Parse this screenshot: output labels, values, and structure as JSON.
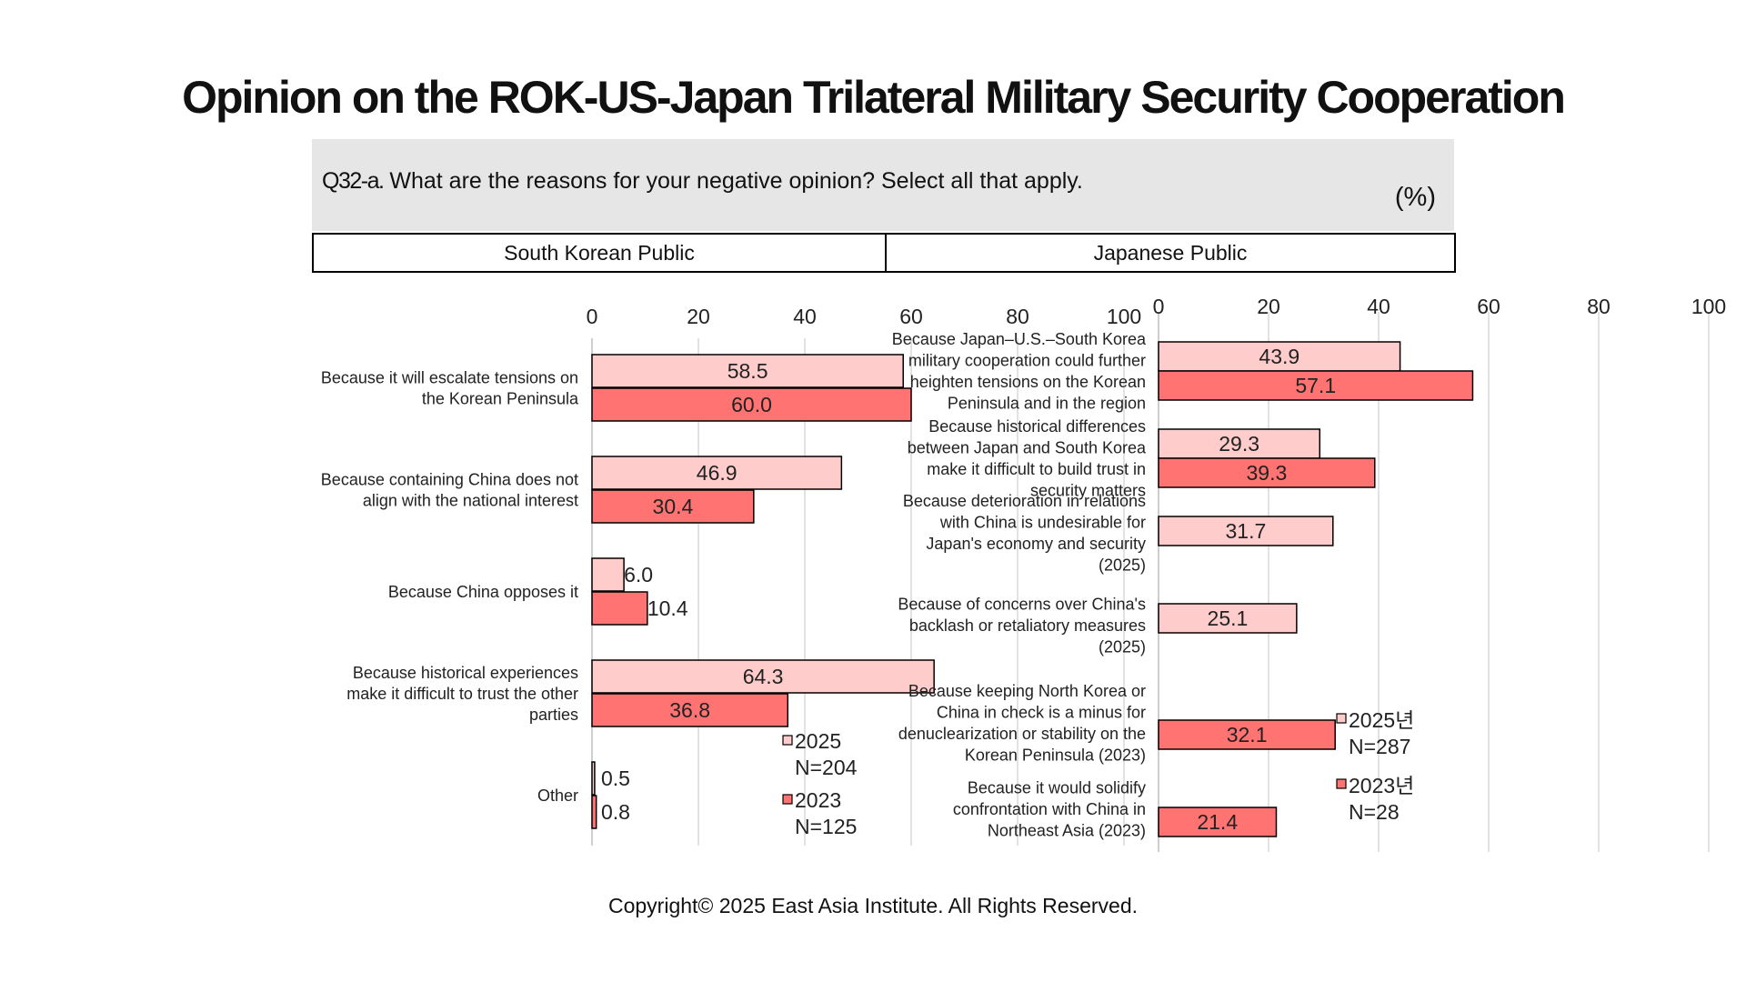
{
  "title": "Opinion on the ROK-US-Japan Trilateral Military Security Cooperation",
  "question": {
    "id": "Q32-a.",
    "text": "What are the reasons for your negative opinion? Select all that apply.",
    "unit": "(%)"
  },
  "headers": {
    "left": "South Korean Public",
    "right": "Japanese Public"
  },
  "copyright": "Copyright© 2025 East Asia Institute. All Rights Reserved.",
  "colors": {
    "series_2025": "#ffcccc",
    "series_2023": "#ff7373",
    "bar_border": "#000000",
    "grid": "#d9d9d9",
    "question_bg": "#e6e6e6"
  },
  "chart_data": [
    {
      "type": "bar",
      "orientation": "horizontal",
      "panel": "South Korean Public",
      "xlim": [
        0,
        100
      ],
      "ticks": [
        0,
        20,
        40,
        60,
        80,
        100
      ],
      "grid": true,
      "legend_position": "bottom-right",
      "categories": [
        [
          "Because it will escalate tensions on",
          "the Korean Peninsula"
        ],
        [
          "Because containing China does not",
          "align with the national interest"
        ],
        [
          "Because China opposes it"
        ],
        [
          "Because historical experiences",
          "make it difficult to trust the other",
          "parties"
        ],
        [
          "Other"
        ]
      ],
      "series": [
        {
          "name": "2025",
          "n_label": "N=204",
          "values": [
            58.5,
            46.9,
            6.0,
            64.3,
            0.5
          ]
        },
        {
          "name": "2023",
          "n_label": "N=125",
          "values": [
            60.0,
            30.4,
            10.4,
            36.8,
            0.8
          ]
        }
      ]
    },
    {
      "type": "bar",
      "orientation": "horizontal",
      "panel": "Japanese Public",
      "xlim": [
        0,
        100
      ],
      "ticks": [
        0,
        20,
        40,
        60,
        80,
        100
      ],
      "grid": true,
      "legend_position": "bottom-right",
      "categories": [
        [
          "Because Japan–U.S.–South Korea",
          "military cooperation could further",
          "heighten tensions on the Korean",
          "Peninsula and in the region"
        ],
        [
          "Because historical differences",
          "between Japan and South Korea",
          "make it difficult to build trust in",
          "security matters"
        ],
        [
          "Because deterioration in relations",
          "with China is undesirable for",
          "Japan's economy and security",
          "(2025)"
        ],
        [
          "Because of concerns over China's",
          "backlash or retaliatory measures",
          "(2025)"
        ],
        [
          "Because keeping North Korea or",
          "China in check is a minus for",
          "denuclearization or stability on the",
          "Korean Peninsula (2023)"
        ],
        [
          "Because it would solidify",
          "confrontation with China in",
          "Northeast Asia (2023)"
        ]
      ],
      "series": [
        {
          "name": "2025년",
          "n_label": "N=287",
          "values": [
            43.9,
            29.3,
            31.7,
            25.1,
            null,
            null
          ]
        },
        {
          "name": "2023년",
          "n_label": "N=28",
          "values": [
            57.1,
            39.3,
            null,
            null,
            32.1,
            21.4
          ]
        }
      ]
    }
  ]
}
